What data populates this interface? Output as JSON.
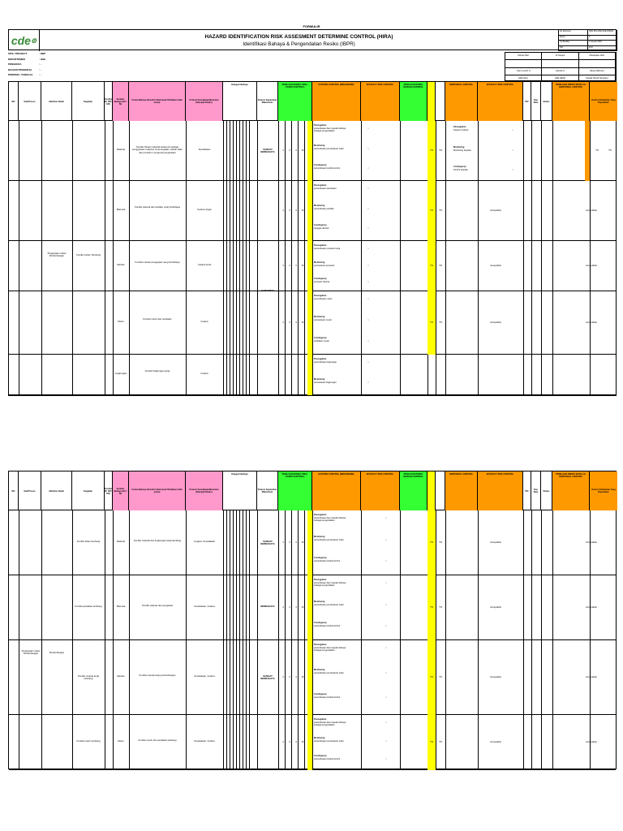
{
  "form_label": "FORMULIR",
  "title": "HAZARD IDENTIFICATION RISK ASSESMENT DETERMINE CONTROL (HIRA)",
  "subtitle": "Identifikasi Bahaya & Pengendalian Resiko (IBPR)",
  "logo_text": "cde",
  "doc_meta": [
    [
      "No Dokumen",
      "HRA-PIN-CDE-SHE-000000"
    ],
    [
      "Revisi",
      "0"
    ],
    [
      "Tgl Berlaku",
      "1 Januari 2022"
    ],
    [
      "Hal",
      "1/10"
    ]
  ],
  "info_left": [
    {
      "label": "SITE / PROJECT",
      "value": ": DBP"
    },
    {
      "label": "DEPARTEMEN",
      "value": ": HSE"
    },
    {
      "label": "PENGERJA",
      "value": ": -"
    },
    {
      "label": "BAGIAN PENGERJA",
      "value": ": -"
    },
    {
      "label": "PERIODE / TANGGAL",
      "value": ": -"
    }
  ],
  "signatures": {
    "row1": [
      "Dibuat Oleh",
      "Di Setujui",
      "Ditetapkan Oleh"
    ],
    "row2": [
      "Yoan Cuochi S",
      "Hamka S",
      "Aditya Rahman"
    ],
    "row3": [
      "HSE Dept.",
      "HSE HEAD",
      "Kepala Teknik Tambang"
    ]
  },
  "columns": {
    "no": "NO",
    "aktivitas": "Sub/Proses",
    "aktivitas_detail": "Aktivitas Detail",
    "kegiatan": "Kegiatan",
    "kondisi": "Kondisi (R, NR / ER)",
    "sumber_bahaya": "Sumber Bahaya (HS / IS)",
    "uraian_bahaya": "Uraian Bahaya (Kondisi tidak aman/Tindakan tidak aman)",
    "potensi": "Potensi Kecelakaan/Bencana (Dampak Risiko)",
    "kategori": "Kategori Bahaya",
    "potensi_keparahan": "Potensi Keparahan Maksimum",
    "penilaian_awal": "PENILAIAN RISIKO AWAL (TANPA KONTROL)",
    "existing": "EXISTING CONTROL (MEKANISME)",
    "kontrol_yang_dilakukan": "Kontrol yang dilakukan Saat Ini",
    "efficacy": "EFFICACY RISK CONTROL",
    "penilaian_sisa": "PENILAIAN RISIKO DENGAN KONTROL",
    "additional": "ADDITIONAL CONTROL",
    "efficacy2": "EFFICACY RISK CONTROL",
    "pic": "PIC",
    "due": "Due Date",
    "status": "Status",
    "penilaian_akhir": "PENILAIAN RISIKO SETELAH ADDITIONAL CONTROL",
    "kontrol_tambahan": "Kontrol Tambahan Yang Diperlukan"
  },
  "page1_rows": [
    {
      "sumber": "Material",
      "uraian": "Kondisi Situasi material terkait air sebagai penggunaan material, Jenis kegiatan, bahan baku dan prosedur mengenai pengelolaan",
      "potensi": "Kecelakaan",
      "kategori": "SANGAT BERBAHAYA",
      "score": [
        "4",
        "3",
        "4",
        "16"
      ],
      "controls": [
        {
          "title": "Pencegahan",
          "text": "pemeriksaan dan inspeksi bahaya sebagai pengendalian"
        },
        {
          "title": "Monitoring",
          "text": "pemeriksaan pemantauan risiko"
        },
        {
          "title": "Contingency",
          "text": "pemeriksaan kondisi kontrol"
        }
      ],
      "residual": "TN",
      "additional": [
        {
          "title": "Pencegahan",
          "text": "Support Industri"
        },
        {
          "title": "Monitoring",
          "text": "Monitoring lanjutan"
        },
        {
          "title": "Contingency",
          "text": "Kontrol lanjutan"
        }
      ],
      "final": "TN"
    },
    {
      "sumber": "Manusia",
      "uraian": "Kondisi pekerja dan perilaku yang berbahaya",
      "potensi": "Cedera ringan",
      "kategori": "",
      "score": [
        "4",
        "3",
        "4",
        "16"
      ],
      "controls": [
        {
          "title": "Pencegahan",
          "text": "pemeriksaan kesehatan"
        },
        {
          "title": "Monitoring",
          "text": "pemeriksaan perilaku"
        },
        {
          "title": "Contingency",
          "text": "tanggap darurat"
        }
      ],
      "residual": "TN",
      "accept": "Acceptable",
      "accept2": "Acceptable"
    },
    {
      "sumber": "Metode",
      "uraian": "Kondisi metode pengerjaan yang berbahaya",
      "potensi": "Cedera berat",
      "kategori": "",
      "score": [
        "4",
        "3",
        "4",
        "16"
      ],
      "controls": [
        {
          "title": "Pencegahan",
          "text": "pemeriksaan prosedur kerja"
        },
        {
          "title": "Monitoring",
          "text": "pemantauan prosedur"
        },
        {
          "title": "Contingency",
          "text": "prosedur darurat"
        }
      ],
      "residual": "TN",
      "accept": "Acceptable",
      "accept2": "Acceptable"
    },
    {
      "sumber": "Mesin",
      "uraian": "Kondisi mesin dan peralatan",
      "potensi": "Cedera",
      "kategori": "",
      "score": [
        "4",
        "3",
        "4",
        "16"
      ],
      "controls": [
        {
          "title": "Pencegahan",
          "text": "pemeriksaan mesin"
        },
        {
          "title": "Monitoring",
          "text": "pemantauan mesin"
        },
        {
          "title": "Contingency",
          "text": "perbaikan mesin"
        }
      ],
      "residual": "TN",
      "accept": "Acceptable",
      "accept2": "Acceptable"
    },
    {
      "sumber": "Lingkungan",
      "uraian": "Kondisi lingkungan kerja",
      "potensi": "Cedera",
      "kategori": "",
      "score": [],
      "controls": [
        {
          "title": "Pencegahan",
          "text": "pemeriksaan lingkungan"
        },
        {
          "title": "Monitoring",
          "text": "pemantauan lingkungan"
        }
      ],
      "residual": "",
      "accept": "",
      "accept2": ""
    }
  ],
  "page1_group": {
    "aktivitas": "Pengerjaan Lahan Pertambangan",
    "kegiatan": "Kondisi Lahan Tambang",
    "label": "KAPASITAS"
  },
  "page2_rows": [
    {
      "kegiatan": "Kondisi lahan tambang",
      "sumber": "Material",
      "uraian": "Kondisi material dan lingkungan kerja tambang",
      "potensi": "Longsor, Kecelakaan",
      "kategori": "SANGAT BERBAHAYA",
      "score": [
        "4",
        "3",
        "4",
        "16"
      ],
      "residual": "TN",
      "accept": "Acceptable",
      "accept2": "Acceptable"
    },
    {
      "kegiatan": "Kondisi peralatan tambang",
      "sumber": "Manusia",
      "uraian": "Kondisi pekerja dan pengawas",
      "potensi": "Kecelakaan, Cedera",
      "kategori": "BERBAHAYA",
      "score": [
        "4",
        "3",
        "4",
        "16"
      ],
      "residual": "TN",
      "accept": "Acceptable",
      "accept2": "Acceptable"
    },
    {
      "kegiatan": "Kondisi metode kerja tambang",
      "sumber": "Metode",
      "uraian": "Kondisi metode kerja pertambangan",
      "potensi": "Kecelakaan, Cedera",
      "kategori": "SANGAT BERBAHAYA",
      "score": [
        "4",
        "3",
        "4",
        "16"
      ],
      "residual": "TN",
      "accept": "Acceptable",
      "accept2": "Acceptable"
    },
    {
      "kegiatan": "Kondisi mesin tambang",
      "sumber": "Mesin",
      "uraian": "Kondisi mesin dan peralatan tambang",
      "potensi": "Kecelakaan, Cedera",
      "kategori": "",
      "score": [
        "4",
        "3",
        "4",
        "16"
      ],
      "residual": "TN",
      "accept": "Acceptable",
      "accept2": "Acceptable"
    }
  ],
  "page2_group": {
    "aktivitas": "Pengerjaan Lahan Pertambangan",
    "aktivitas_detail": "Pertambangan"
  }
}
